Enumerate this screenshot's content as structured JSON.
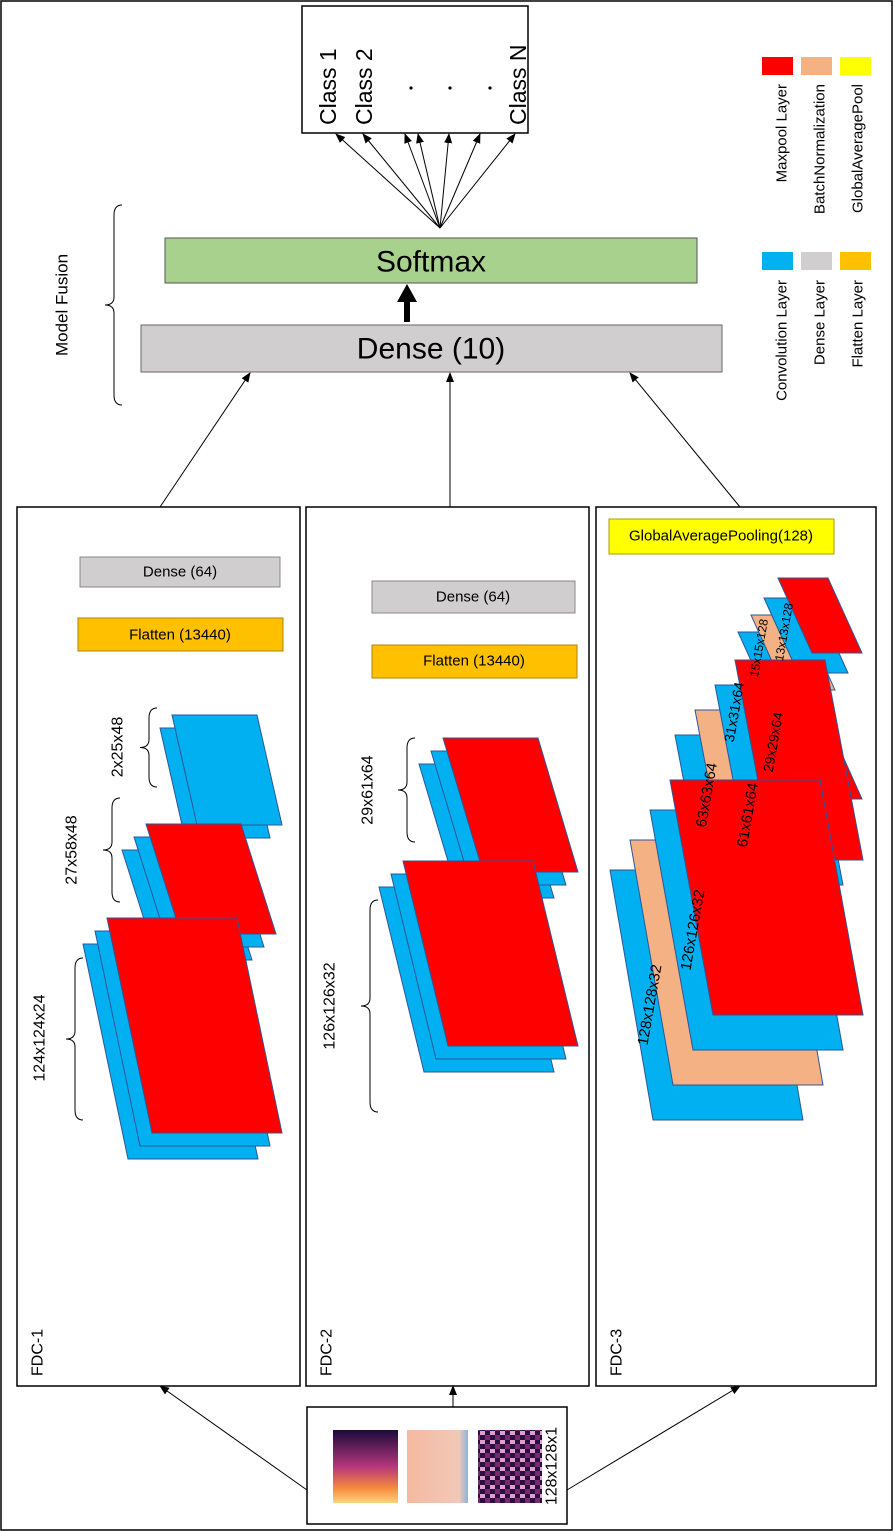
{
  "output": {
    "classes": [
      "Class 1",
      "Class 2",
      "Class N"
    ]
  },
  "softmax": "Softmax",
  "dense": "Dense (10)",
  "fusion_label": "Model Fusion",
  "legend": [
    {
      "label": "Maxpool Layer"
    },
    {
      "label": "BatchNormalization"
    },
    {
      "label": "GlobalAveragePool"
    },
    {
      "label": "Convolution Layer"
    },
    {
      "label": "Dense Layer"
    },
    {
      "label": "Flatten Layer"
    }
  ],
  "panels": [
    {
      "name": "FDC-1",
      "dense": "Dense (64)",
      "flatten": "Flatten (13440)",
      "shapes": [
        "2x25x48",
        "27x58x48",
        "124x124x24"
      ]
    },
    {
      "name": "FDC-2",
      "dense": "Dense (64)",
      "flatten": "Flatten (13440)",
      "shapes": [
        "29x61x64",
        "126x126x32"
      ]
    },
    {
      "name": "FDC-3",
      "pooling": "GlobalAveragePooling(128)",
      "shapes": [
        "128x128x32",
        "126x126x32",
        "63x63x64",
        "61x61x64",
        "31x31x64",
        "29x29x64",
        "15x15x128",
        "13x13x128"
      ]
    }
  ],
  "input": {
    "shape": "128x128x1"
  }
}
